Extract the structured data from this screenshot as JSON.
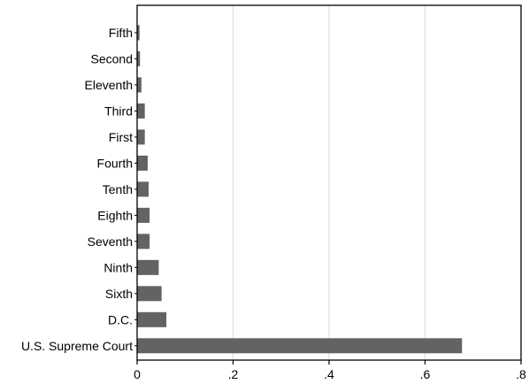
{
  "chart_data": {
    "type": "bar",
    "orientation": "horizontal",
    "categories": [
      "Fifth",
      "Second",
      "Eleventh",
      "Third",
      "First",
      "Fourth",
      "Tenth",
      "Eighth",
      "Seventh",
      "Ninth",
      "Sixth",
      "D.C.",
      "U.S. Supreme Court"
    ],
    "values": [
      0.005,
      0.006,
      0.009,
      0.016,
      0.016,
      0.022,
      0.024,
      0.026,
      0.026,
      0.045,
      0.051,
      0.061,
      0.677
    ],
    "xlim": [
      0,
      0.8
    ],
    "xticks": [
      0,
      0.2,
      0.4,
      0.6,
      0.8
    ],
    "xtick_labels": [
      "0",
      ".2",
      ".4",
      ".6",
      ".8"
    ],
    "title": "",
    "xlabel": "",
    "ylabel": "",
    "grid": "vertical",
    "legend": "none",
    "colors": {
      "bar": "#636363",
      "grid": "#d9d9d9",
      "axis": "#000000"
    }
  }
}
